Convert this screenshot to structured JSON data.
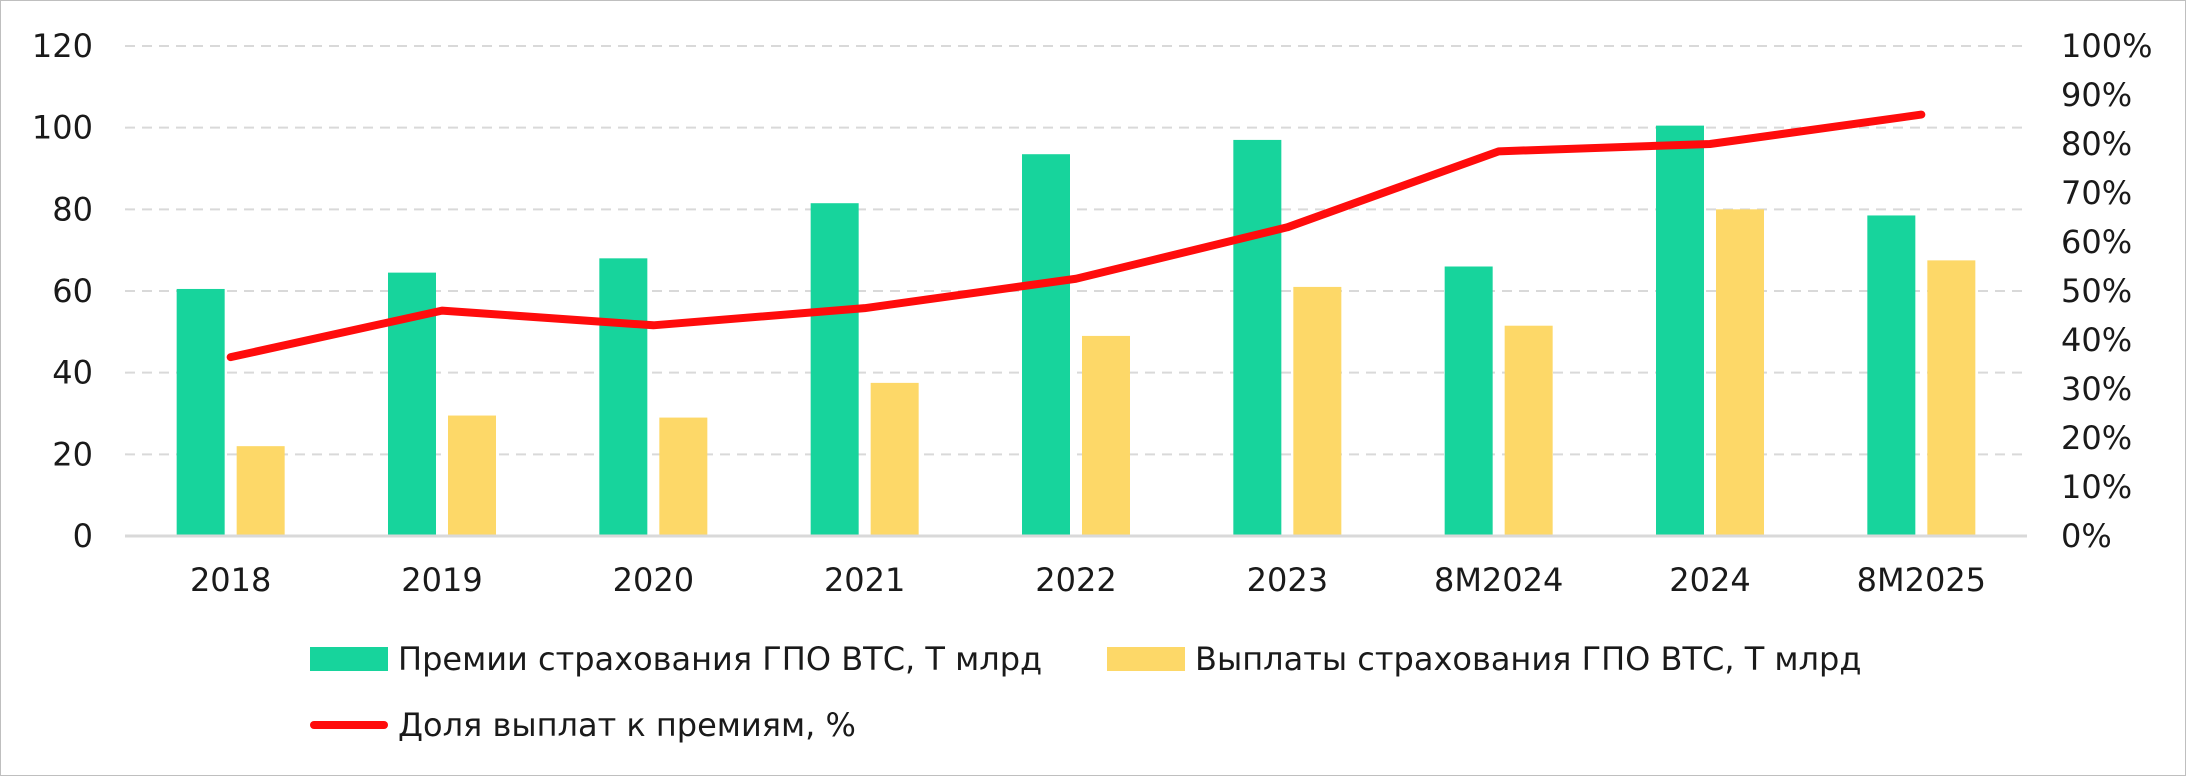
{
  "chart_data": {
    "type": "bar",
    "categories": [
      "2018",
      "2019",
      "2020",
      "2021",
      "2022",
      "2023",
      "8M2024",
      "2024",
      "8M2025"
    ],
    "series": [
      {
        "name": "Премии страхования ГПО ВТС, Т млрд",
        "type": "bar",
        "axis": "left",
        "color": "#17d49c",
        "values": [
          60.5,
          64.5,
          68,
          81.5,
          93.5,
          97,
          66,
          100.5,
          78.5
        ]
      },
      {
        "name": "Выплаты страхования ГПО ВТС, Т млрд",
        "type": "bar",
        "axis": "left",
        "color": "#fdd868",
        "values": [
          22,
          29.5,
          29,
          37.5,
          49,
          61,
          51.5,
          80,
          67.5
        ]
      },
      {
        "name": "Доля выплат к премиям, %",
        "type": "line",
        "axis": "right",
        "color": "#ff0c0c",
        "values": [
          36.5,
          46,
          43,
          46.5,
          52.5,
          63,
          78.5,
          80,
          86
        ]
      }
    ],
    "y_left": {
      "range": [
        0,
        120
      ],
      "ticks": [
        0,
        20,
        40,
        60,
        80,
        100,
        120
      ],
      "tick_labels": [
        "0",
        "20",
        "40",
        "60",
        "80",
        "100",
        "120"
      ]
    },
    "y_right": {
      "range": [
        0,
        100
      ],
      "ticks": [
        0,
        10,
        20,
        30,
        40,
        50,
        60,
        70,
        80,
        90,
        100
      ],
      "tick_labels": [
        "0%",
        "10%",
        "20%",
        "30%",
        "40%",
        "50%",
        "60%",
        "70%",
        "80%",
        "90%",
        "100%"
      ]
    },
    "title": "",
    "xlabel": "",
    "ylabel": "",
    "grid": "horizontal-dashed",
    "legend_position": "bottom"
  }
}
